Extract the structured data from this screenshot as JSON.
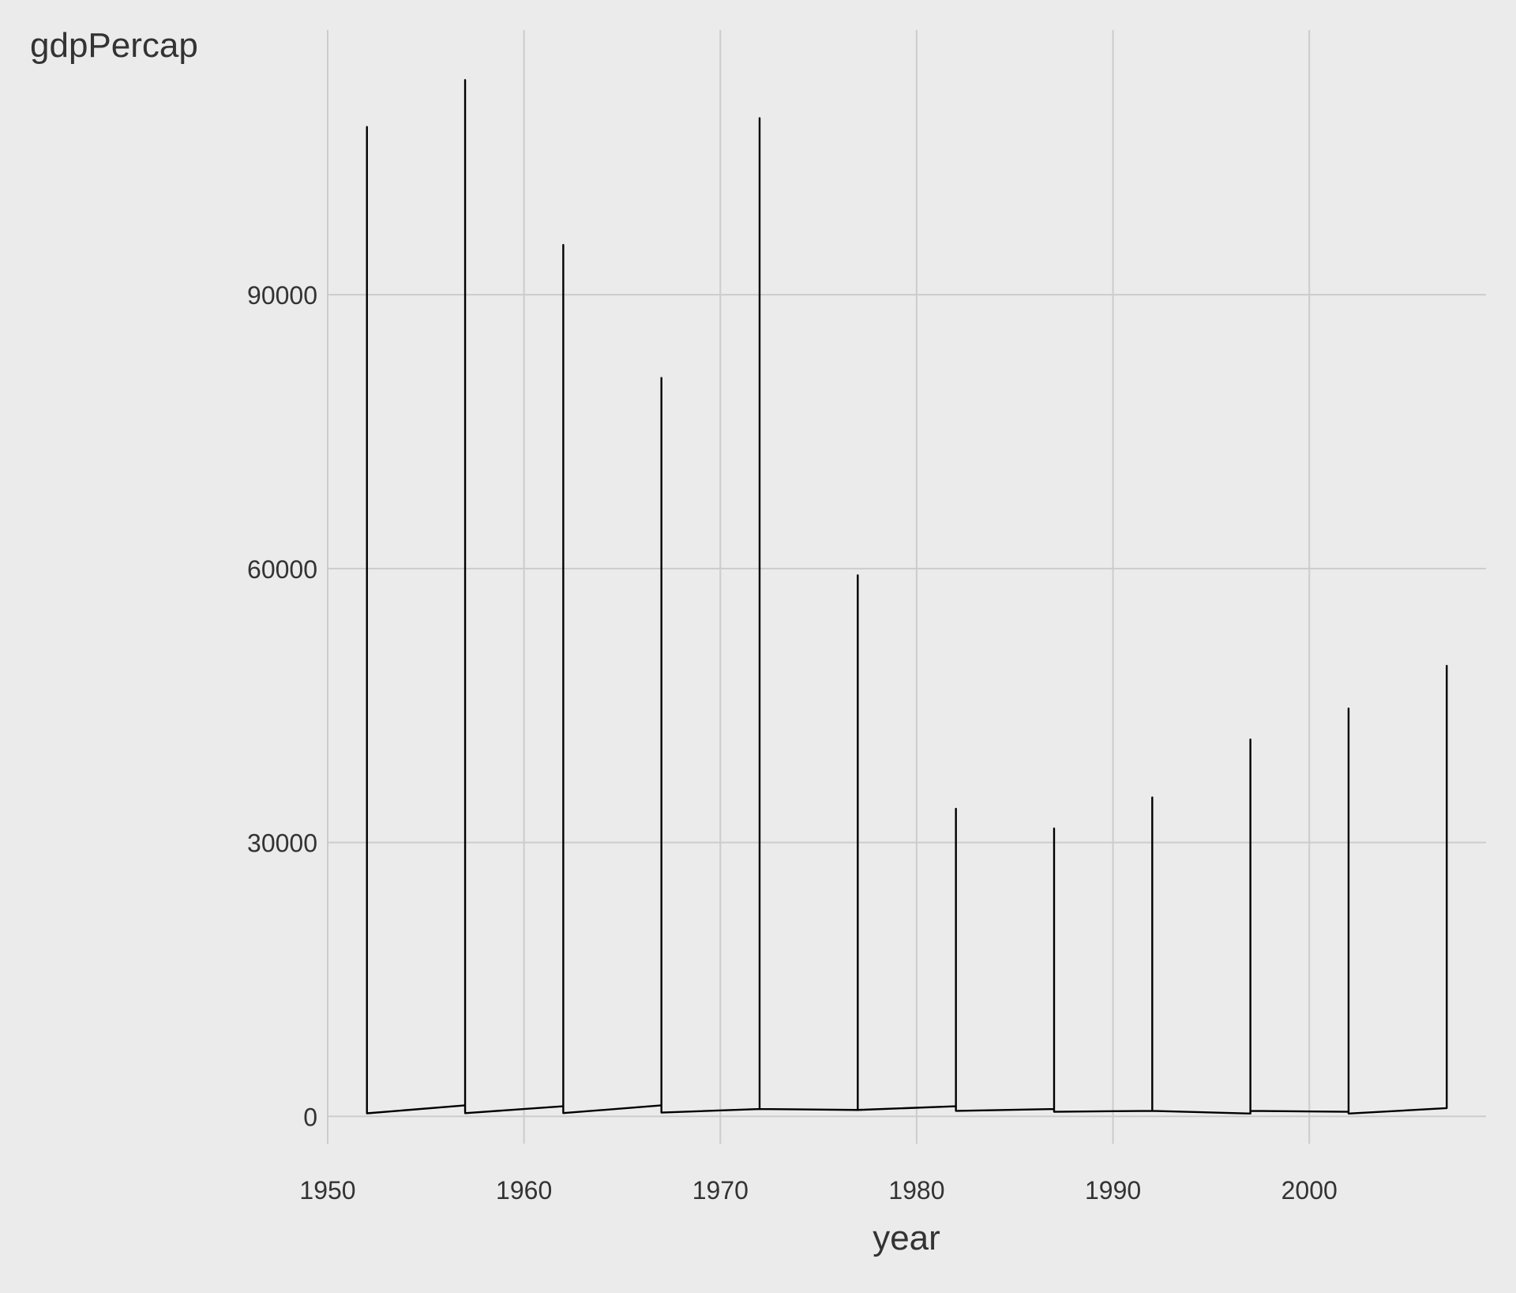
{
  "colors": {
    "background": "#ebebeb",
    "grid": "#cccccc",
    "line": "#000000",
    "text": "#333333"
  },
  "chart_data": {
    "type": "line",
    "title": "",
    "xlabel": "year",
    "ylabel": "gdpPercap",
    "xlim": [
      1950,
      2009
    ],
    "ylim": [
      -3000,
      119000
    ],
    "x_ticks": [
      1950,
      1960,
      1970,
      1980,
      1990,
      2000
    ],
    "y_ticks": [
      0,
      30000,
      60000,
      90000
    ],
    "x_tick_labels": [
      "1950",
      "1960",
      "1970",
      "1980",
      "1990",
      "2000"
    ],
    "y_tick_labels": [
      "0",
      "30000",
      "60000",
      "90000"
    ],
    "grid": true,
    "legend": "none",
    "series": [
      {
        "x": [
          1952,
          1952,
          1952,
          1957,
          1957,
          1957,
          1962,
          1962,
          1962,
          1967,
          1967,
          1967,
          1972,
          1972,
          1972,
          1977,
          1977,
          1977,
          1982,
          1982,
          1982,
          1987,
          1987,
          1987,
          1992,
          1992,
          1992,
          1997,
          1997,
          1997,
          2002,
          2002,
          2002,
          2007,
          2007,
          2007
        ],
        "y": [
          331,
          108382,
          331,
          1200,
          113523,
          350,
          1100,
          95458,
          355,
          1200,
          80895,
          413,
          800,
          109348,
          800,
          700,
          59265,
          700,
          1100,
          33693,
          600,
          800,
          31541,
          500,
          600,
          34933,
          600,
          300,
          41283,
          600,
          500,
          44684,
          300,
          900,
          49357,
          900
        ]
      }
    ]
  }
}
